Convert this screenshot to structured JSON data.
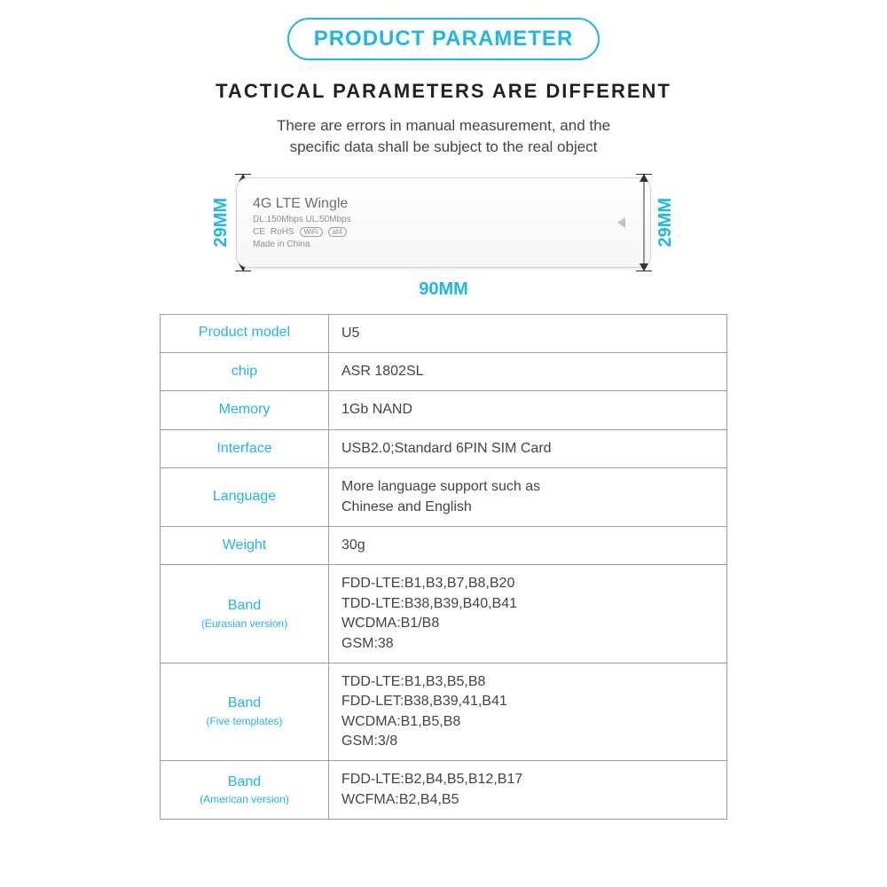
{
  "colors": {
    "accent": "#1fb6e8",
    "heading": "#222222",
    "body": "#444444",
    "border": "#9aa0a6",
    "deviceText": "#7a7e82"
  },
  "badge": {
    "text": "PRODUCT PARAMETER",
    "fontsize": 24,
    "border_width": 2
  },
  "headline": "TACTICAL PARAMETERS ARE DIFFERENT",
  "subhead": "There are errors in manual measurement, and the\nspecific data shall be subject to the real object",
  "dimensions": {
    "height_label": "29MM",
    "width_label": "90MM"
  },
  "device": {
    "title": "4G LTE Wingle",
    "speed": "DL:150Mbps UL:50Mbps",
    "made": "Made in China",
    "certs": [
      "CE",
      "RoHS"
    ],
    "badges": [
      "WiFi",
      "at4"
    ]
  },
  "table": {
    "border_color": "#9aa0a6",
    "label_color": "#1fb6e8",
    "value_color": "#444444",
    "rows": [
      {
        "label": "Product model",
        "sub": "",
        "value": "U5"
      },
      {
        "label": "chip",
        "sub": "",
        "value": "ASR 1802SL"
      },
      {
        "label": "Memory",
        "sub": "",
        "value": "1Gb NAND"
      },
      {
        "label": "Interface",
        "sub": "",
        "value": "USB2.0;Standard 6PIN SIM Card"
      },
      {
        "label": "Language",
        "sub": "",
        "value": "More language support such as\nChinese and English"
      },
      {
        "label": "Weight",
        "sub": "",
        "value": "30g"
      },
      {
        "label": "Band",
        "sub": "(Eurasian version)",
        "value": "FDD-LTE:B1,B3,B7,B8,B20\nTDD-LTE:B38,B39,B40,B41\nWCDMA:B1/B8\nGSM:38"
      },
      {
        "label": "Band",
        "sub": "(Five templates)",
        "value": "TDD-LTE:B1,B3,B5,B8\nFDD-LET:B38,B39,41,B41\nWCDMA:B1,B5,B8\nGSM:3/8"
      },
      {
        "label": "Band",
        "sub": "(American version)",
        "value": "FDD-LTE:B2,B4,B5,B12,B17\nWCFMA:B2,B4,B5"
      }
    ]
  }
}
